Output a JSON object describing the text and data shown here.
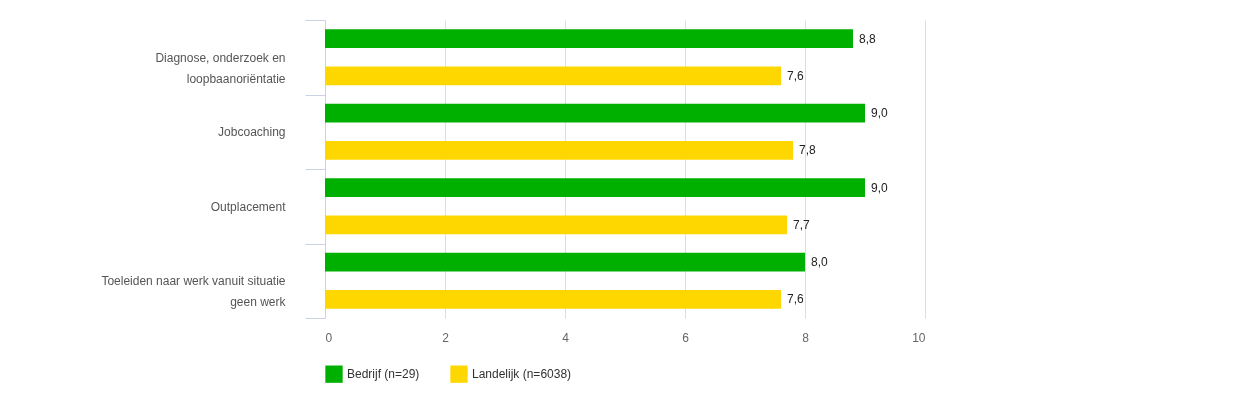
{
  "chart_data": {
    "type": "bar",
    "orientation": "horizontal",
    "categories": [
      "Diagnose, onderzoek en loopbaanoriëntatie",
      "Jobcoaching",
      "Outplacement",
      "Toeleiden naar werk vanuit situatie geen werk"
    ],
    "series": [
      {
        "name": "Bedrijf (n=29)",
        "color": "#00b000",
        "values": [
          8.8,
          9.0,
          9.0,
          8.0
        ],
        "value_labels": [
          "8,8",
          "9,0",
          "9,0",
          "8,0"
        ]
      },
      {
        "name": "Landelijk (n=6038)",
        "color": "#ffd700",
        "values": [
          7.6,
          7.8,
          7.7,
          7.6
        ],
        "value_labels": [
          "7,6",
          "7,8",
          "7,7",
          "7,6"
        ]
      }
    ],
    "xlim": [
      0,
      10
    ],
    "xticks": [
      0,
      2,
      4,
      6,
      8,
      10
    ],
    "grid": "x",
    "legend": "bottom left"
  }
}
